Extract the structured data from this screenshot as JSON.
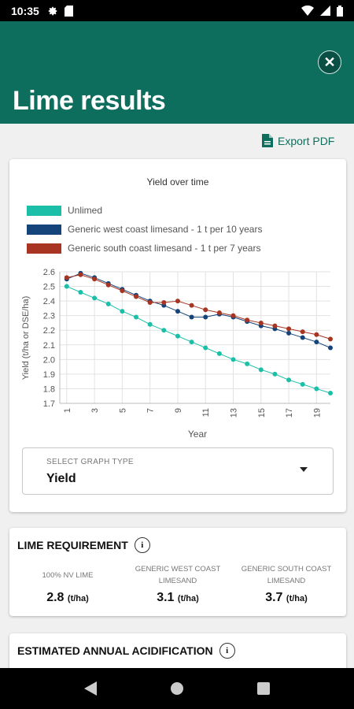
{
  "status_bar": {
    "time": "10:35"
  },
  "header": {
    "title": "Lime results"
  },
  "export": {
    "label": "Export PDF"
  },
  "chart_card": {
    "title": "Yield over time",
    "select": {
      "label": "SELECT GRAPH TYPE",
      "value": "Yield"
    }
  },
  "chart_data": {
    "type": "line",
    "title": "Yield over time",
    "xlabel": "Year",
    "ylabel": "Yield (t/ha or DSE/ha)",
    "x": [
      1,
      2,
      3,
      4,
      5,
      6,
      7,
      8,
      9,
      10,
      11,
      12,
      13,
      14,
      15,
      16,
      17,
      18,
      19,
      20
    ],
    "xlim": [
      0.5,
      20
    ],
    "ylim": [
      1.7,
      2.6
    ],
    "xticks": [
      "1",
      "3",
      "5",
      "7",
      "9",
      "11",
      "13",
      "15",
      "17",
      "19"
    ],
    "yticks": [
      "1.7",
      "1.8",
      "1.9",
      "2.0",
      "2.1",
      "2.2",
      "2.3",
      "2.4",
      "2.5",
      "2.6"
    ],
    "grid": true,
    "legend_position": "top",
    "series": [
      {
        "name": "Unlimed",
        "color": "#1bbfa8",
        "values": [
          2.5,
          2.46,
          2.42,
          2.38,
          2.33,
          2.29,
          2.24,
          2.2,
          2.16,
          2.12,
          2.08,
          2.04,
          2.0,
          1.97,
          1.93,
          1.9,
          1.86,
          1.83,
          1.8,
          1.77
        ]
      },
      {
        "name": "Generic west coast limesand - 1 t per 10 years",
        "color": "#15447a",
        "values": [
          2.55,
          2.59,
          2.56,
          2.52,
          2.48,
          2.44,
          2.4,
          2.37,
          2.33,
          2.29,
          2.29,
          2.31,
          2.29,
          2.26,
          2.23,
          2.21,
          2.18,
          2.15,
          2.12,
          2.08
        ]
      },
      {
        "name": "Generic south coast limesand - 1 t per 7 years",
        "color": "#a73522",
        "values": [
          2.56,
          2.58,
          2.55,
          2.51,
          2.47,
          2.43,
          2.39,
          2.39,
          2.4,
          2.37,
          2.34,
          2.32,
          2.3,
          2.27,
          2.25,
          2.23,
          2.21,
          2.19,
          2.17,
          2.14
        ]
      }
    ]
  },
  "lime_requirement": {
    "title": "LIME REQUIREMENT",
    "items": [
      {
        "label": "100% NV LIME",
        "value": "2.8",
        "unit": "(t/ha)"
      },
      {
        "label": "GENERIC WEST COAST LIMESAND",
        "value": "3.1",
        "unit": "(t/ha)"
      },
      {
        "label": "GENERIC SOUTH COAST LIMESAND",
        "value": "3.7",
        "unit": "(t/ha)"
      }
    ]
  },
  "acidification": {
    "title": "ESTIMATED ANNUAL ACIDIFICATION"
  },
  "icons": [
    "gear-icon",
    "sd-card-icon",
    "wifi-icon",
    "signal-icon",
    "battery-icon",
    "close-icon",
    "pdf-file-icon",
    "info-icon",
    "dropdown-caret-icon",
    "back-icon",
    "home-icon",
    "recents-icon"
  ]
}
